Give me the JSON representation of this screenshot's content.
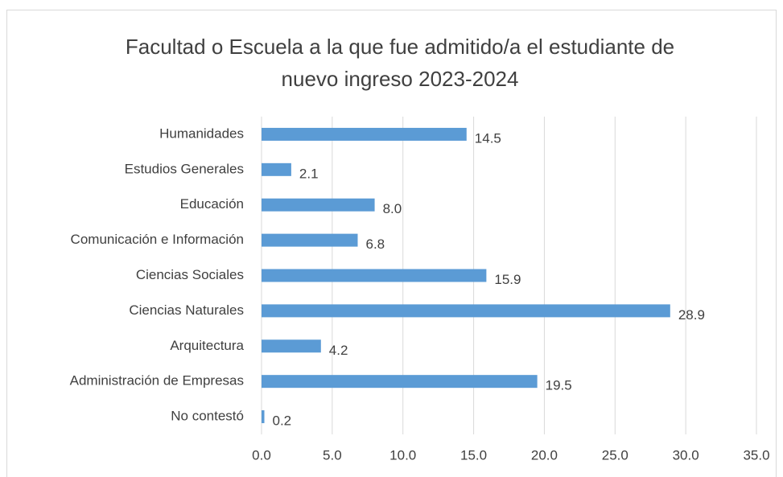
{
  "chart_data": {
    "type": "bar",
    "orientation": "horizontal",
    "title": "Facultad o Escuela a la que fue admitido/a el estudiante de nuevo ingreso 2023-2024",
    "categories": [
      "Humanidades",
      "Estudios Generales",
      "Educación",
      "Comunicación e Información",
      "Ciencias Sociales",
      "Ciencias Naturales",
      "Arquitectura",
      "Administración de Empresas",
      "No contestó"
    ],
    "values": [
      14.5,
      2.1,
      8.0,
      6.8,
      15.9,
      28.9,
      4.2,
      19.5,
      0.2
    ],
    "value_labels": [
      "14.5",
      "2.1",
      "8.0",
      "6.8",
      "15.9",
      "28.9",
      "4.2",
      "19.5",
      "0.2"
    ],
    "color": "#5b9bd5",
    "xlim": [
      0,
      35
    ],
    "xticks": [
      {
        "value": 0,
        "label": "0.0"
      },
      {
        "value": 5,
        "label": "5.0"
      },
      {
        "value": 10,
        "label": "10.0"
      },
      {
        "value": 15,
        "label": "15.0"
      },
      {
        "value": 20,
        "label": "20.0"
      },
      {
        "value": 25,
        "label": "25.0"
      },
      {
        "value": 30,
        "label": "30.0"
      },
      {
        "value": 35,
        "label": "35.0"
      }
    ],
    "grid": true
  }
}
